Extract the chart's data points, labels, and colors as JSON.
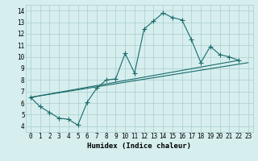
{
  "title": "",
  "xlabel": "Humidex (Indice chaleur)",
  "ylabel": "",
  "xlim": [
    -0.5,
    23.5
  ],
  "ylim": [
    3.5,
    14.5
  ],
  "xticks": [
    0,
    1,
    2,
    3,
    4,
    5,
    6,
    7,
    8,
    9,
    10,
    11,
    12,
    13,
    14,
    15,
    16,
    17,
    18,
    19,
    20,
    21,
    22,
    23
  ],
  "yticks": [
    4,
    5,
    6,
    7,
    8,
    9,
    10,
    11,
    12,
    13,
    14
  ],
  "bg_color": "#d6eeee",
  "grid_color": "#aacccc",
  "line_color": "#1a6b6b",
  "line1_x": [
    0,
    1,
    2,
    3,
    4,
    5,
    6,
    7,
    8,
    9,
    10,
    11,
    12,
    13,
    14,
    15,
    16,
    17,
    18,
    19,
    20,
    21,
    22
  ],
  "line1_y": [
    6.5,
    5.7,
    5.2,
    4.7,
    4.6,
    4.1,
    6.1,
    7.3,
    8.0,
    8.1,
    10.3,
    8.6,
    12.4,
    13.1,
    13.8,
    13.4,
    13.2,
    11.5,
    9.5,
    10.9,
    10.2,
    10.0,
    9.7
  ],
  "line2_x": [
    0,
    22
  ],
  "line2_y": [
    6.5,
    9.7
  ],
  "line3_x": [
    0,
    23
  ],
  "line3_y": [
    6.5,
    9.5
  ],
  "marker": "+",
  "markersize": 4,
  "linewidth": 0.8,
  "tick_fontsize": 5.5,
  "xlabel_fontsize": 6.5
}
